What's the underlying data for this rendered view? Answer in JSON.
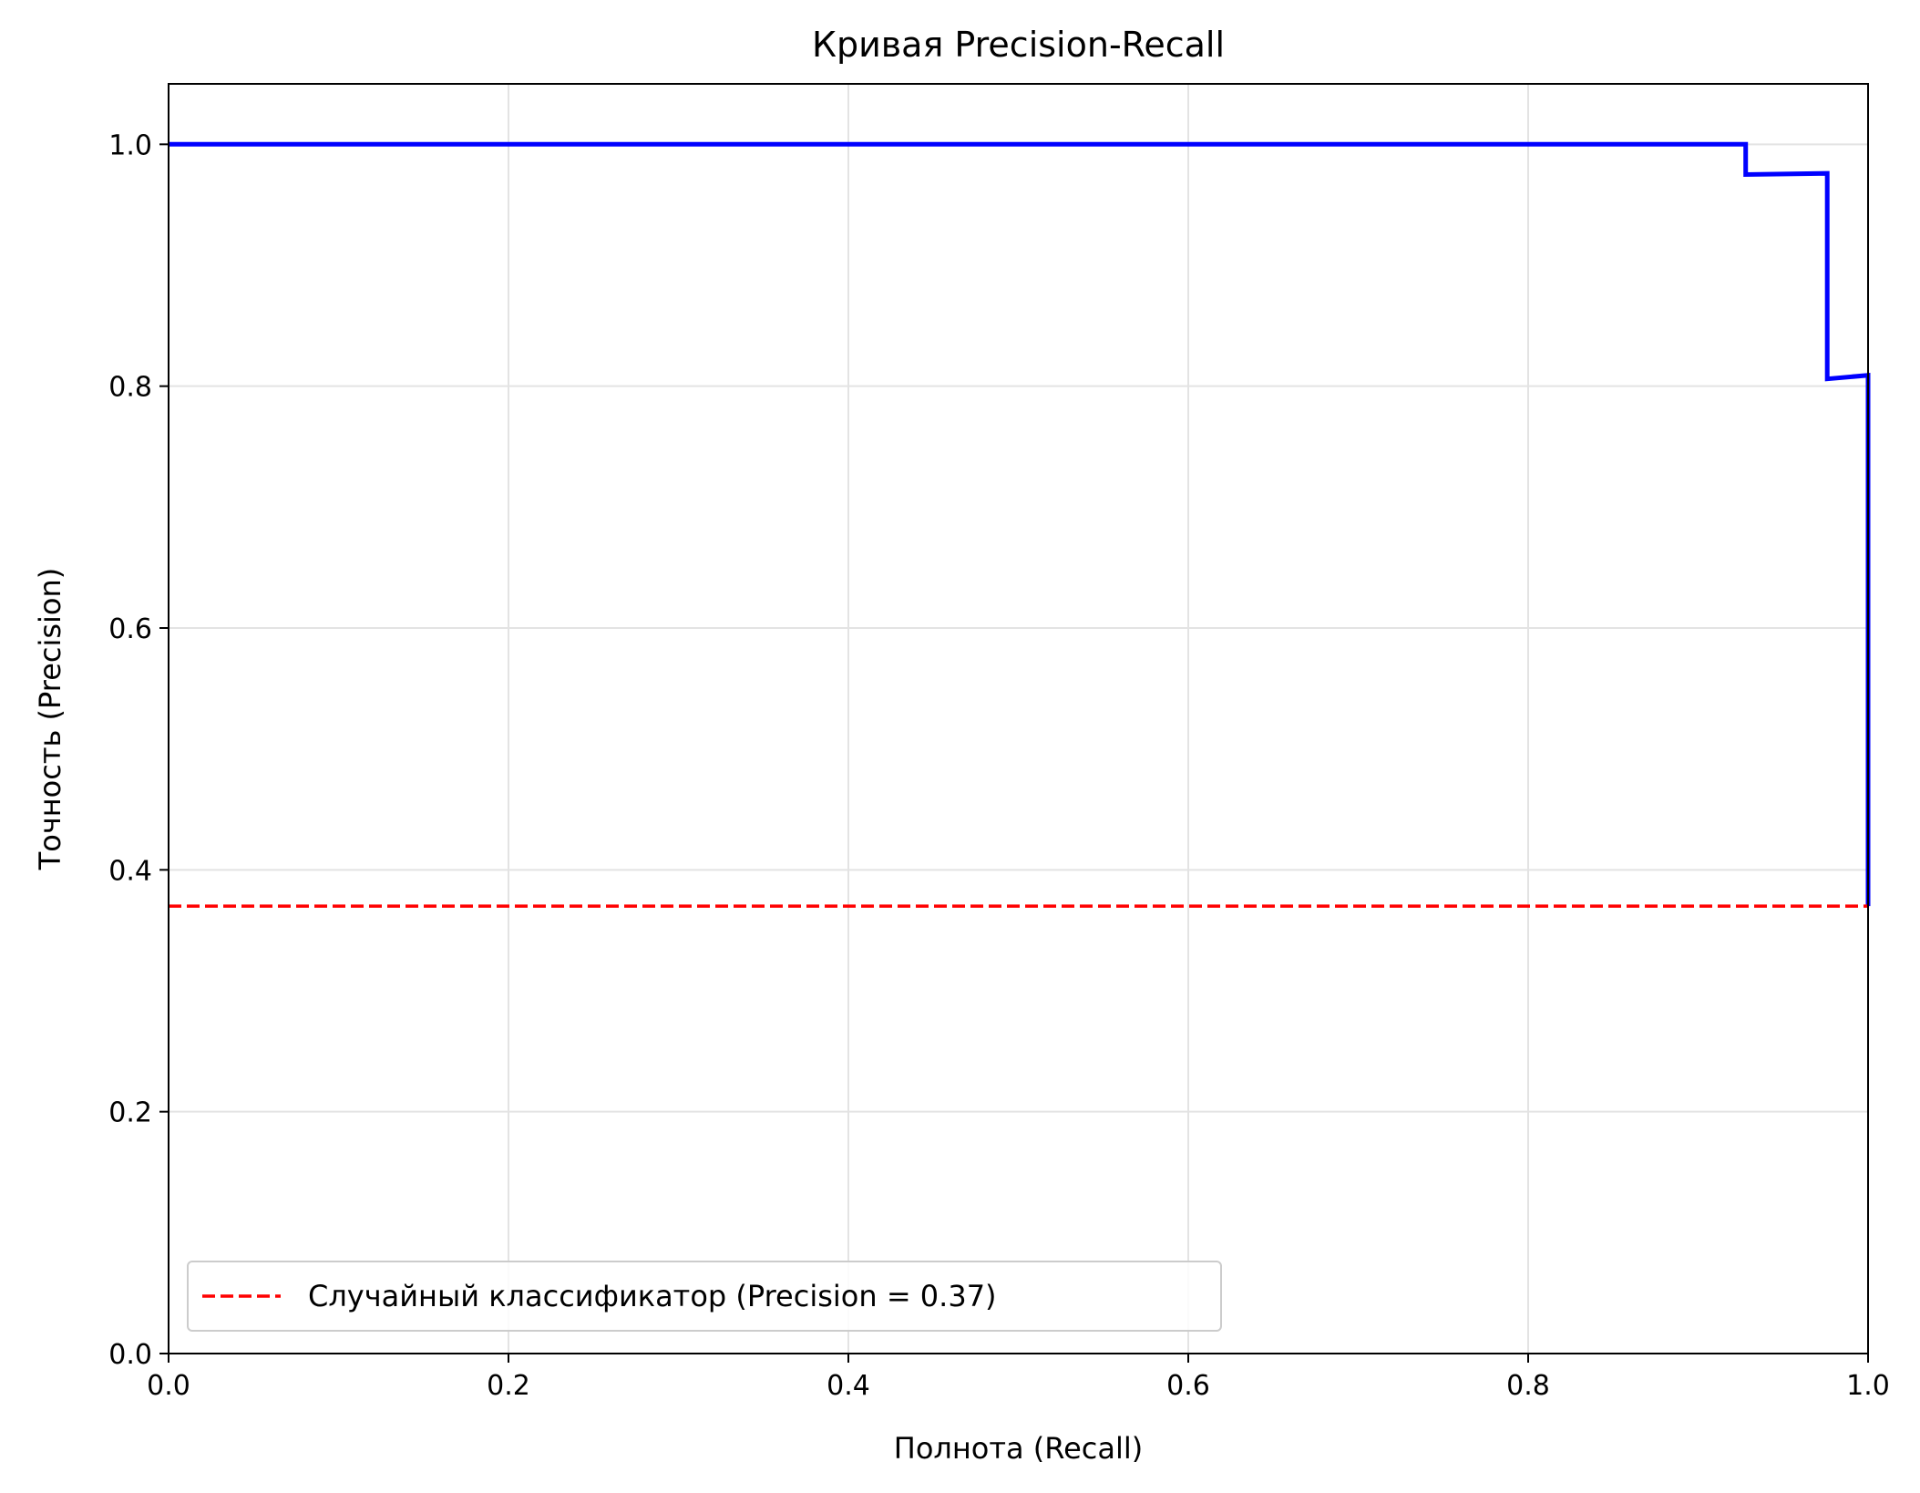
{
  "chart_data": {
    "type": "line",
    "title": "Кривая Precision-Recall",
    "xlabel": "Полнота (Recall)",
    "ylabel": "Точность (Precision)",
    "xlim": [
      0.0,
      1.0
    ],
    "ylim": [
      0.0,
      1.05
    ],
    "xticks": [
      0.0,
      0.2,
      0.4,
      0.6,
      0.8,
      1.0
    ],
    "yticks": [
      0.0,
      0.2,
      0.4,
      0.6,
      0.8,
      1.0
    ],
    "xtick_labels": [
      "0.0",
      "0.2",
      "0.4",
      "0.6",
      "0.8",
      "1.0"
    ],
    "ytick_labels": [
      "0.0",
      "0.2",
      "0.4",
      "0.6",
      "0.8",
      "1.0"
    ],
    "grid": true,
    "legend_position": "lower-left",
    "series": [
      {
        "color": "#0000ff",
        "style": "solid",
        "points": [
          [
            0.0,
            1.0
          ],
          [
            0.928,
            1.0
          ],
          [
            0.928,
            0.975
          ],
          [
            0.976,
            0.976
          ],
          [
            0.976,
            0.806
          ],
          [
            1.0,
            0.809
          ],
          [
            1.0,
            0.37
          ]
        ]
      },
      {
        "name": "Случайный классификатор (Precision = 0.37)",
        "color": "#ff0000",
        "style": "dashed",
        "points": [
          [
            0.0,
            0.37
          ],
          [
            1.0,
            0.37
          ]
        ]
      }
    ]
  }
}
